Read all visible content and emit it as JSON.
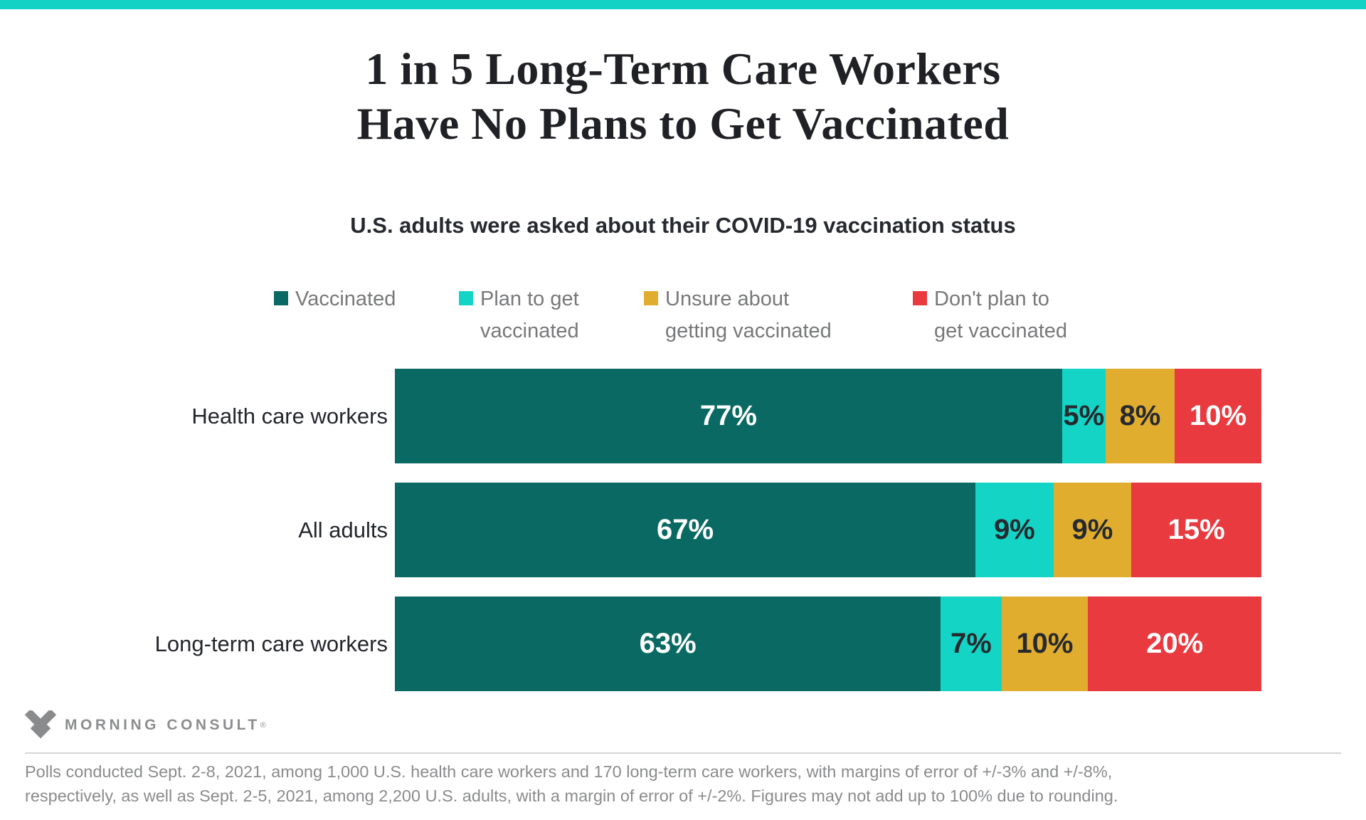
{
  "page": {
    "banner_color": "#12d2c6"
  },
  "header": {
    "title": "1 in 5 Long-Term Care Workers\nHave No Plans to Get Vaccinated",
    "subtitle": "U.S. adults were asked about their COVID-19 vaccination status"
  },
  "chart_data": {
    "type": "bar",
    "orientation": "horizontal-stacked",
    "unit": "percent",
    "xlim": [
      0,
      100
    ],
    "legend_position": "top",
    "value_label_format": "{v}%",
    "categories": [
      "Health care workers",
      "All adults",
      "Long-term care workers"
    ],
    "series": [
      {
        "name": "Vaccinated",
        "legend_label": "Vaccinated",
        "color": "#0a6a63",
        "text_color": "#ffffff",
        "values": [
          77,
          67,
          63
        ]
      },
      {
        "name": "Plan to get vaccinated",
        "legend_label": "Plan to get\nvaccinated",
        "color": "#13d4c5",
        "text_color": "#26292e",
        "values": [
          5,
          9,
          7
        ]
      },
      {
        "name": "Unsure about getting vaccinated",
        "legend_label": "Unsure about\ngetting vaccinated",
        "color": "#e0ad2e",
        "text_color": "#26292e",
        "values": [
          8,
          9,
          10
        ]
      },
      {
        "name": "Don't plan to get vaccinated",
        "legend_label": "Don't plan to\nget vaccinated",
        "color": "#e93a3f",
        "text_color": "#ffffff",
        "values": [
          10,
          15,
          20
        ]
      }
    ]
  },
  "footer": {
    "brand": "MORNING CONSULT",
    "registered_mark": "®",
    "note": "Polls conducted Sept. 2-8, 2021, among 1,000 U.S. health care workers and 170 long-term care workers, with margins of error of +/-3% and +/-8%,\nrespectively, as well as Sept. 2-5, 2021, among 2,200 U.S. adults, with a margin of error of +/-2%. Figures may not add up to 100% due to rounding."
  }
}
